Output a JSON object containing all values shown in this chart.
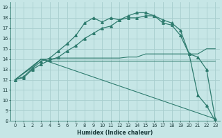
{
  "xlabel": "Humidex (Indice chaleur)",
  "bg_color": "#c6e6e6",
  "grid_color": "#a8cece",
  "line_color": "#2e7b6e",
  "xlim": [
    -0.5,
    23.5
  ],
  "ylim": [
    8,
    19.5
  ],
  "xticks": [
    0,
    1,
    2,
    3,
    4,
    5,
    6,
    7,
    8,
    9,
    10,
    11,
    12,
    13,
    14,
    15,
    16,
    17,
    18,
    19,
    20,
    21,
    22,
    23
  ],
  "yticks": [
    8,
    9,
    10,
    11,
    12,
    13,
    14,
    15,
    16,
    17,
    18,
    19
  ],
  "series": [
    {
      "x": [
        0,
        1,
        2,
        3,
        4,
        5,
        6,
        7,
        8,
        9,
        10,
        11,
        12,
        13,
        14,
        15,
        16,
        17,
        18,
        19,
        20,
        21,
        22,
        23
      ],
      "y": [
        12,
        12.3,
        13.1,
        13.8,
        14.1,
        14.8,
        15.5,
        16.3,
        17.5,
        18.0,
        17.6,
        18.0,
        17.8,
        18.2,
        18.5,
        18.5,
        18.2,
        17.5,
        17.3,
        16.3,
        14.5,
        10.5,
        9.5,
        8.0
      ],
      "marker": "^",
      "marker_size": 2.5,
      "linewidth": 0.9
    },
    {
      "x": [
        0,
        1,
        2,
        3,
        4,
        5,
        6,
        7,
        8,
        9,
        10,
        11,
        12,
        13,
        14,
        15,
        16,
        17,
        18,
        19,
        20,
        21,
        22,
        23
      ],
      "y": [
        12,
        12.2,
        13.0,
        13.5,
        13.9,
        14.2,
        14.8,
        15.3,
        16.0,
        16.5,
        17.0,
        17.2,
        17.8,
        18.0,
        18.0,
        18.2,
        18.2,
        17.8,
        17.5,
        16.8,
        14.5,
        14.2,
        13.0,
        8.2
      ],
      "marker": "^",
      "marker_size": 2.5,
      "linewidth": 0.9
    },
    {
      "x": [
        0,
        2,
        3,
        4,
        5,
        6,
        7,
        8,
        9,
        10,
        11,
        12,
        13,
        14,
        15,
        16,
        17,
        18,
        19,
        20,
        21,
        22,
        23
      ],
      "y": [
        12,
        13.3,
        14.0,
        14.0,
        14.1,
        14.1,
        14.1,
        14.1,
        14.1,
        14.1,
        14.1,
        14.1,
        14.2,
        14.2,
        14.5,
        14.5,
        14.5,
        14.5,
        14.5,
        14.5,
        14.5,
        15.0,
        15.0
      ],
      "marker": null,
      "linewidth": 0.8
    },
    {
      "x": [
        0,
        2,
        3,
        4,
        5,
        6,
        7,
        8,
        9,
        10,
        11,
        12,
        13,
        14,
        15,
        16,
        17,
        18,
        19,
        20,
        21,
        22,
        23
      ],
      "y": [
        12,
        13.2,
        14.0,
        13.8,
        13.8,
        13.8,
        13.8,
        13.8,
        13.8,
        13.8,
        13.8,
        13.8,
        13.8,
        13.8,
        13.8,
        13.8,
        13.8,
        13.8,
        13.8,
        13.8,
        13.8,
        13.8,
        13.8
      ],
      "marker": null,
      "linewidth": 0.8
    },
    {
      "x": [
        0,
        3,
        23
      ],
      "y": [
        12,
        14.0,
        8.2
      ],
      "marker": null,
      "linewidth": 0.8
    }
  ]
}
